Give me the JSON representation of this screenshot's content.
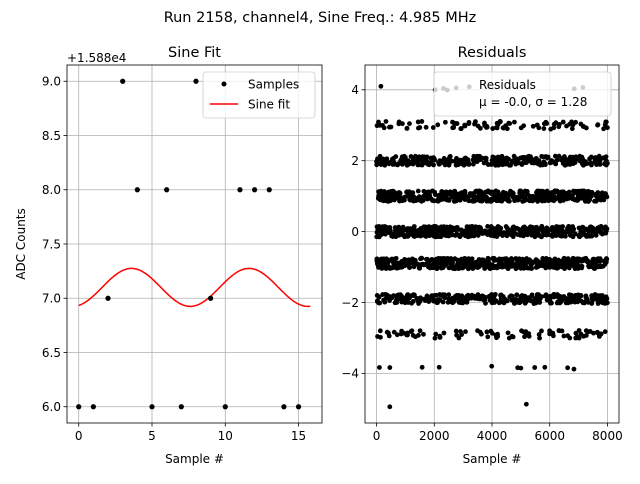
{
  "figure": {
    "suptitle": "Run 2158, channel4, Sine Freq.: 4.985 MHz"
  },
  "chart_data": [
    {
      "type": "scatter",
      "title": "Sine Fit",
      "xlabel": "Sample #",
      "ylabel": "ADC Counts",
      "offset_label": "+1.588e4",
      "xlim": [
        -0.8,
        16.6
      ],
      "ylim": [
        5.85,
        9.15
      ],
      "xticks": [
        0,
        5,
        10,
        15
      ],
      "xtick_labels": [
        "0",
        "5",
        "10",
        "15"
      ],
      "yticks": [
        6.0,
        6.5,
        7.0,
        7.5,
        8.0,
        8.5,
        9.0
      ],
      "ytick_labels": [
        "6.0",
        "6.5",
        "7.0",
        "7.5",
        "8.0",
        "8.5",
        "9.0"
      ],
      "grid": true,
      "legend": {
        "position": "top-right",
        "entries": [
          "Samples",
          "Sine fit"
        ]
      },
      "samples": {
        "name": "Samples",
        "color": "#000000",
        "x": [
          0,
          1,
          2,
          3,
          4,
          5,
          6,
          7,
          8,
          9,
          10,
          11,
          12,
          13,
          14,
          15
        ],
        "y": [
          6,
          6,
          7,
          9,
          8,
          6,
          8,
          6,
          9,
          7,
          6,
          8,
          8,
          8,
          6,
          6
        ]
      },
      "fit": {
        "name": "Sine fit",
        "color": "#ff0000",
        "amplitude": 0.175,
        "mean": 7.1,
        "period": 8.02,
        "phase": -1.25,
        "x_range": [
          0,
          15.8
        ]
      }
    },
    {
      "type": "scatter",
      "title": "Residuals",
      "xlabel": "Sample #",
      "ylabel": "",
      "xlim": [
        -400,
        8400
      ],
      "ylim": [
        -5.4,
        4.7
      ],
      "xticks": [
        0,
        2000,
        4000,
        6000,
        8000
      ],
      "xtick_labels": [
        "0",
        "2000",
        "4000",
        "6000",
        "8000"
      ],
      "yticks": [
        -4,
        -2,
        0,
        2,
        4
      ],
      "ytick_labels": [
        "−4",
        "−2",
        "0",
        "2",
        "4"
      ],
      "grid": true,
      "legend": {
        "position": "top-right",
        "entries": [
          "Residuals",
          "μ = -0.0, σ = 1.28"
        ]
      },
      "series": {
        "name": "Residuals",
        "color": "#000000",
        "mu": -0.0,
        "sigma": 1.28,
        "n_samples": 8000,
        "bands": [
          {
            "level": 4.05,
            "density": "sparse",
            "x": [
              150,
              2030,
              2320,
              2450,
              2760,
              3210,
              6850,
              7150
            ]
          },
          {
            "level": 3.0,
            "density": "medium"
          },
          {
            "level": 2.0,
            "density": "dense"
          },
          {
            "level": 1.0,
            "density": "very dense"
          },
          {
            "level": 0.0,
            "density": "very dense"
          },
          {
            "level": -0.9,
            "density": "very dense"
          },
          {
            "level": -1.9,
            "density": "dense"
          },
          {
            "level": -2.9,
            "density": "medium"
          },
          {
            "level": -3.85,
            "density": "sparse",
            "x": [
              100,
              460,
              1580,
              2170,
              3990,
              4890,
              5000,
              5480,
              5830,
              6620,
              6840
            ]
          },
          {
            "level": -4.9,
            "density": "outliers",
            "x": [
              460,
              5190
            ]
          }
        ]
      }
    }
  ]
}
